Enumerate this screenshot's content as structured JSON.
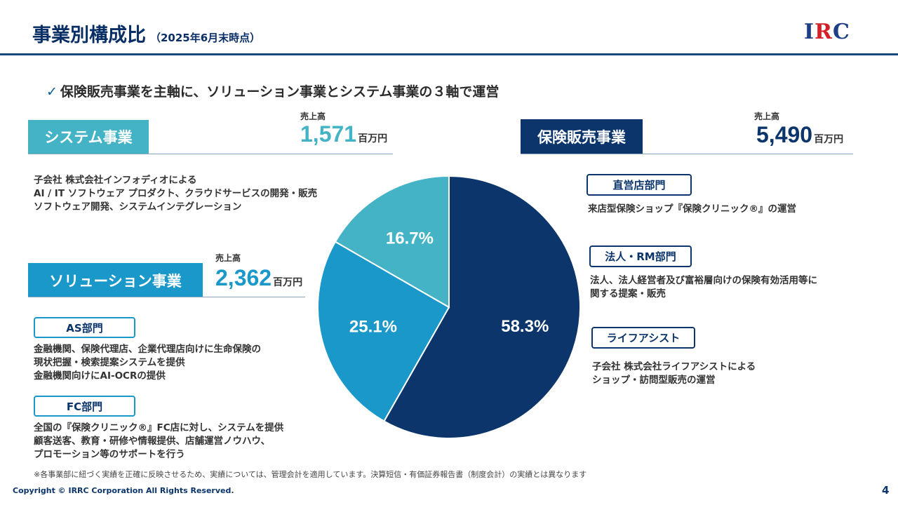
{
  "header": {
    "title": "事業別構成比",
    "subtitle": "（2025年6月末時点）",
    "logo_text": "IRC"
  },
  "headline": {
    "check": "✓",
    "text": "保険販売事業を主軸に、ソリューション事業とシステム事業の３軸で運営"
  },
  "system": {
    "name": "システム事業",
    "sales_label": "売上高",
    "sales_value": "1,571",
    "sales_unit": "百万円",
    "desc": [
      "子会社 株式会社インフォディオによる",
      "AI / IT ソフトウェア プロダクト、クラウドサービスの開発・販売",
      "ソフトウェア開発、システムインテグレーション"
    ]
  },
  "solution": {
    "name": "ソリューション事業",
    "sales_label": "売上高",
    "sales_value": "2,362",
    "sales_unit": "百万円",
    "departments": [
      {
        "name": "AS部門",
        "desc": [
          "金融機関、保険代理店、企業代理店向けに生命保険の",
          "現状把握・検索提案システムを提供",
          "金融機関向けにAI-OCRの提供"
        ]
      },
      {
        "name": "FC部門",
        "desc": [
          "全国の『保険クリニック®』FC店に対し、システムを提供",
          "顧客送客、教育・研修や情報提供、店舗運営ノウハウ、",
          "プロモーション等のサポートを行う"
        ]
      }
    ]
  },
  "insurance": {
    "name": "保険販売事業",
    "sales_label": "売上高",
    "sales_value": "5,490",
    "sales_unit": "百万円",
    "departments": [
      {
        "name": "直営店部門",
        "desc": [
          "来店型保険ショップ『保険クリニック®』の運営"
        ]
      },
      {
        "name": "法人・RM部門",
        "desc": [
          "法人、法人経営者及び富裕層向けの保険有効活用等に",
          "関する提案・販売"
        ]
      },
      {
        "name": "ライフアシスト",
        "desc": [
          "子会社 株式会社ライフアシストによる",
          "ショップ・訪問型販売の運営"
        ]
      }
    ]
  },
  "chart_data": {
    "type": "pie",
    "slices": [
      {
        "label": "保険販売事業",
        "value": 58.3,
        "display": "58.3%",
        "color": "#0b356b"
      },
      {
        "label": "ソリューション事業",
        "value": 25.1,
        "display": "25.1%",
        "color": "#1a98c9"
      },
      {
        "label": "システム事業",
        "value": 16.7,
        "display": "16.7%",
        "color": "#45b3c6"
      }
    ],
    "start": "12 o'clock",
    "direction": "clockwise"
  },
  "footer": {
    "note": "※各事業部に紐づく実績を正確に反映させるため、実績については、管理会計を適用しています。決算短信・有価証券報告書（制度会計）の実績とは異なります",
    "copyright": "Copyright © IRRC Corporation All Rights Reserved.",
    "page": "4"
  }
}
